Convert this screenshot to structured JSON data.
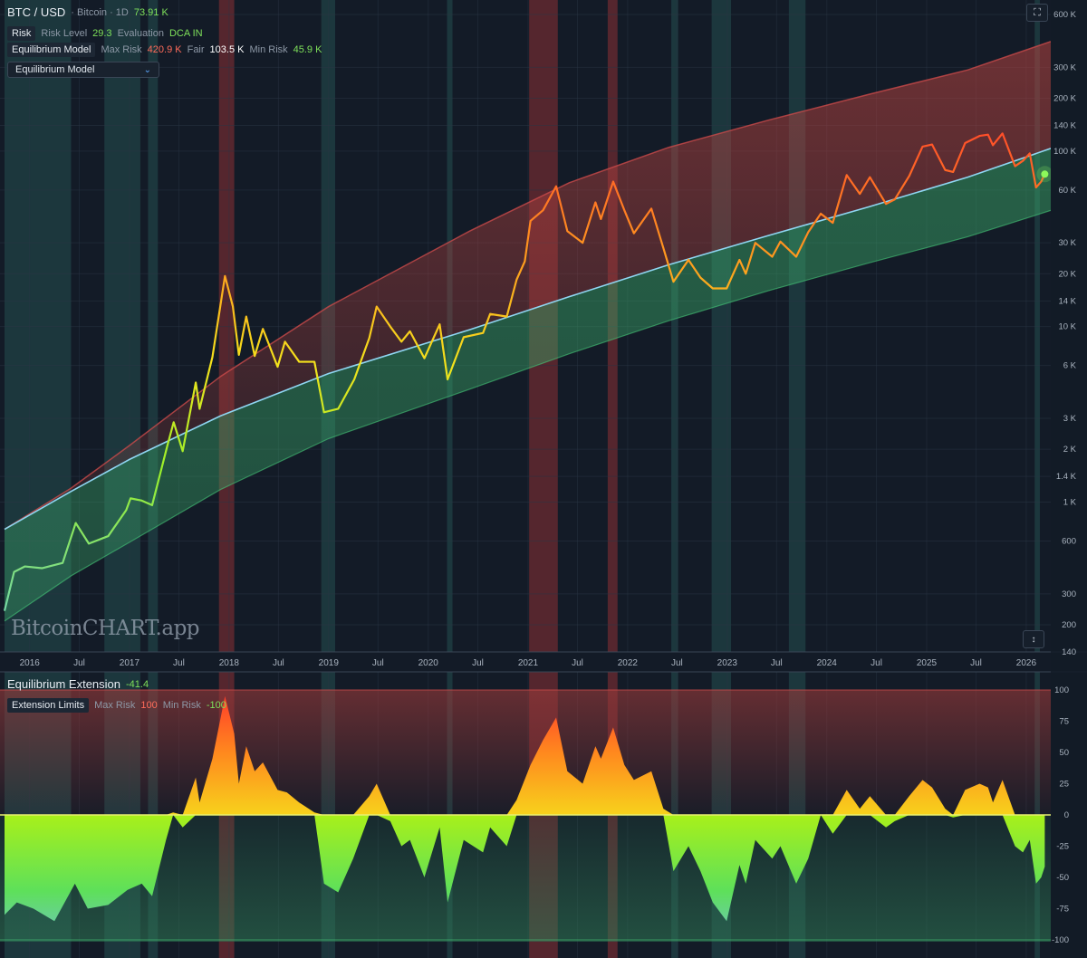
{
  "header": {
    "symbol": "BTC / USD",
    "meta": "· Bitcoin · 1D",
    "price": "73.91 K",
    "risk_tag": "Risk",
    "risk_level_label": "Risk Level",
    "risk_level_value": "29.3",
    "evaluation_label": "Evaluation",
    "evaluation_value": "DCA IN",
    "model_tag": "Equilibrium Model",
    "max_risk_label": "Max Risk",
    "max_risk_value": "420.9 K",
    "fair_label": "Fair",
    "fair_value": "103.5 K",
    "min_risk_label": "Min Risk",
    "min_risk_value": "45.9 K"
  },
  "dropdown": {
    "selected": "Equilibrium Model",
    "icon": "chevron-down-icon"
  },
  "toolbar": {
    "fullscreen_icon": "fullscreen-icon",
    "collapse_icon": "collapse-icon"
  },
  "watermark": {
    "brand_a": "Bitcoin",
    "brand_b": "CHART",
    "brand_c": ".app"
  },
  "subpanel": {
    "title": "Equilibrium Extension",
    "value": "-41.4",
    "limits_tag": "Extension Limits",
    "max_label": "Max Risk",
    "max_value": "100",
    "min_label": "Min Risk",
    "min_value": "-100"
  },
  "colors": {
    "background": "#131b27",
    "fair_line": "#8fd6f2",
    "upper_band": "#c94a4a",
    "lower_band": "#3fae6a",
    "high_risk_zone": "#c23b3b",
    "low_risk_zone": "#2f6e66"
  },
  "chart_data": [
    {
      "type": "line",
      "scale": "log",
      "x_ticks": [
        "2016",
        "Jul",
        "2017",
        "Jul",
        "2018",
        "Jul",
        "2019",
        "Jul",
        "2020",
        "Jul",
        "2021",
        "Jul",
        "2022",
        "Jul",
        "2023",
        "Jul",
        "2024",
        "Jul",
        "2025",
        "Jul",
        "2026"
      ],
      "y_ticks": [
        "600 K",
        "300 K",
        "200 K",
        "140 K",
        "100 K",
        "60 K",
        "30 K",
        "20 K",
        "14 K",
        "10 K",
        "6 K",
        "3 K",
        "2 K",
        "1.4 K",
        "1 K",
        "600",
        "300",
        "200",
        "140"
      ],
      "ylim": [
        140,
        600000
      ],
      "xlim": [
        "2015-10-01",
        "2026-04-01"
      ],
      "bands": {
        "max_risk": [
          [
            "2015-10-01",
            700
          ],
          [
            "2016-06-01",
            1200
          ],
          [
            "2017-01-01",
            2100
          ],
          [
            "2017-12-01",
            5200
          ],
          [
            "2019-01-01",
            13000
          ],
          [
            "2020-06-01",
            35000
          ],
          [
            "2021-06-01",
            66000
          ],
          [
            "2022-06-01",
            105000
          ],
          [
            "2023-06-01",
            150000
          ],
          [
            "2024-06-01",
            210000
          ],
          [
            "2025-06-01",
            290000
          ],
          [
            "2026-04-01",
            420900
          ]
        ],
        "fair": [
          [
            "2015-10-01",
            700
          ],
          [
            "2016-06-01",
            1150
          ],
          [
            "2017-01-01",
            1750
          ],
          [
            "2017-12-01",
            3100
          ],
          [
            "2019-01-01",
            5400
          ],
          [
            "2020-06-01",
            9600
          ],
          [
            "2021-06-01",
            14800
          ],
          [
            "2022-06-01",
            22500
          ],
          [
            "2023-06-01",
            33000
          ],
          [
            "2024-06-01",
            48000
          ],
          [
            "2025-06-01",
            71000
          ],
          [
            "2026-04-01",
            103500
          ]
        ],
        "min_risk": [
          [
            "2015-10-01",
            210
          ],
          [
            "2016-06-01",
            380
          ],
          [
            "2017-01-01",
            590
          ],
          [
            "2017-12-01",
            1180
          ],
          [
            "2019-01-01",
            2300
          ],
          [
            "2020-06-01",
            4400
          ],
          [
            "2021-06-01",
            7000
          ],
          [
            "2022-06-01",
            10800
          ],
          [
            "2023-06-01",
            16000
          ],
          [
            "2024-06-01",
            23000
          ],
          [
            "2025-06-01",
            32500
          ],
          [
            "2026-04-01",
            45900
          ]
        ]
      },
      "price": [
        [
          "2015-10-01",
          240
        ],
        [
          "2015-11-05",
          400
        ],
        [
          "2015-12-15",
          430
        ],
        [
          "2016-02-15",
          420
        ],
        [
          "2016-05-01",
          450
        ],
        [
          "2016-06-18",
          760
        ],
        [
          "2016-08-05",
          580
        ],
        [
          "2016-10-15",
          640
        ],
        [
          "2016-12-20",
          900
        ],
        [
          "2017-01-05",
          1050
        ],
        [
          "2017-02-15",
          1020
        ],
        [
          "2017-03-25",
          960
        ],
        [
          "2017-05-20",
          2100
        ],
        [
          "2017-06-12",
          2850
        ],
        [
          "2017-07-15",
          1950
        ],
        [
          "2017-09-01",
          4800
        ],
        [
          "2017-09-15",
          3400
        ],
        [
          "2017-11-01",
          6700
        ],
        [
          "2017-12-17",
          19400
        ],
        [
          "2018-01-15",
          13000
        ],
        [
          "2018-02-06",
          6900
        ],
        [
          "2018-03-05",
          11400
        ],
        [
          "2018-04-05",
          6800
        ],
        [
          "2018-05-05",
          9700
        ],
        [
          "2018-06-28",
          5900
        ],
        [
          "2018-07-25",
          8200
        ],
        [
          "2018-09-15",
          6300
        ],
        [
          "2018-11-10",
          6300
        ],
        [
          "2018-12-15",
          3250
        ],
        [
          "2019-02-05",
          3400
        ],
        [
          "2019-04-05",
          5000
        ],
        [
          "2019-05-30",
          8600
        ],
        [
          "2019-06-26",
          13000
        ],
        [
          "2019-08-15",
          10000
        ],
        [
          "2019-09-25",
          8200
        ],
        [
          "2019-10-26",
          9400
        ],
        [
          "2019-12-18",
          6600
        ],
        [
          "2020-02-12",
          10300
        ],
        [
          "2020-03-12",
          5000
        ],
        [
          "2020-05-10",
          8700
        ],
        [
          "2020-07-20",
          9200
        ],
        [
          "2020-08-15",
          11800
        ],
        [
          "2020-10-15",
          11400
        ],
        [
          "2020-11-20",
          18500
        ],
        [
          "2020-12-20",
          23500
        ],
        [
          "2021-01-10",
          40000
        ],
        [
          "2021-02-25",
          46000
        ],
        [
          "2021-04-14",
          63000
        ],
        [
          "2021-05-25",
          35000
        ],
        [
          "2021-07-20",
          30000
        ],
        [
          "2021-09-05",
          51000
        ],
        [
          "2021-09-25",
          41000
        ],
        [
          "2021-11-09",
          67000
        ],
        [
          "2021-12-20",
          46000
        ],
        [
          "2022-01-24",
          34000
        ],
        [
          "2022-03-29",
          47000
        ],
        [
          "2022-05-12",
          28000
        ],
        [
          "2022-06-18",
          18000
        ],
        [
          "2022-08-12",
          24000
        ],
        [
          "2022-09-25",
          19000
        ],
        [
          "2022-11-09",
          16500
        ],
        [
          "2022-12-30",
          16500
        ],
        [
          "2023-02-15",
          24000
        ],
        [
          "2023-03-10",
          20000
        ],
        [
          "2023-04-14",
          30000
        ],
        [
          "2023-06-15",
          25000
        ],
        [
          "2023-07-15",
          30500
        ],
        [
          "2023-09-11",
          25000
        ],
        [
          "2023-10-25",
          34500
        ],
        [
          "2023-12-10",
          44000
        ],
        [
          "2024-01-23",
          39000
        ],
        [
          "2024-03-14",
          73000
        ],
        [
          "2024-05-01",
          57000
        ],
        [
          "2024-06-07",
          71000
        ],
        [
          "2024-08-05",
          50000
        ],
        [
          "2024-09-06",
          53000
        ],
        [
          "2024-10-29",
          72000
        ],
        [
          "2024-12-17",
          106000
        ],
        [
          "2025-01-21",
          109000
        ],
        [
          "2025-03-10",
          78000
        ],
        [
          "2025-04-08",
          76000
        ],
        [
          "2025-05-22",
          111000
        ],
        [
          "2025-07-14",
          122000
        ],
        [
          "2025-08-14",
          124000
        ],
        [
          "2025-09-01",
          108000
        ],
        [
          "2025-10-06",
          126000
        ],
        [
          "2025-11-21",
          82000
        ],
        [
          "2025-12-20",
          88000
        ],
        [
          "2026-01-14",
          97000
        ],
        [
          "2026-02-06",
          62000
        ],
        [
          "2026-02-25",
          67000
        ],
        [
          "2026-03-10",
          73910
        ]
      ],
      "high_risk_zones": [
        [
          "2017-11-25",
          "2018-01-20"
        ],
        [
          "2021-01-05",
          "2021-04-20"
        ],
        [
          "2021-10-20",
          "2021-11-25"
        ]
      ],
      "low_risk_zones": [
        [
          "2015-10-01",
          "2016-06-01"
        ],
        [
          "2016-10-01",
          "2017-02-10"
        ],
        [
          "2017-03-10",
          "2017-04-15"
        ],
        [
          "2018-12-05",
          "2019-01-25"
        ],
        [
          "2020-03-10",
          "2020-03-30"
        ],
        [
          "2022-06-10",
          "2022-07-05"
        ],
        [
          "2022-11-05",
          "2023-01-15"
        ],
        [
          "2023-08-15",
          "2023-10-15"
        ],
        [
          "2026-02-01",
          "2026-02-20"
        ]
      ]
    },
    {
      "type": "area",
      "title": "Equilibrium Extension",
      "y_ticks": [
        "100",
        "75",
        "50",
        "25",
        "0",
        "-25",
        "-50",
        "-75",
        "-100"
      ],
      "ylim": [
        -100,
        100
      ],
      "x": [
        "2015-10-01",
        "2015-11-15",
        "2016-01-15",
        "2016-04-01",
        "2016-06-15",
        "2016-08-01",
        "2016-10-15",
        "2016-12-25",
        "2017-02-15",
        "2017-03-25",
        "2017-05-15",
        "2017-06-10",
        "2017-07-15",
        "2017-09-01",
        "2017-09-15",
        "2017-11-01",
        "2017-12-17",
        "2018-01-20",
        "2018-02-06",
        "2018-03-05",
        "2018-04-05",
        "2018-05-05",
        "2018-06-28",
        "2018-08-01",
        "2018-09-15",
        "2018-11-10",
        "2018-12-15",
        "2019-02-05",
        "2019-04-01",
        "2019-05-30",
        "2019-06-26",
        "2019-08-15",
        "2019-09-25",
        "2019-10-26",
        "2019-12-18",
        "2020-02-12",
        "2020-03-12",
        "2020-05-10",
        "2020-07-20",
        "2020-08-15",
        "2020-10-15",
        "2020-11-20",
        "2021-01-10",
        "2021-02-25",
        "2021-04-14",
        "2021-05-25",
        "2021-07-20",
        "2021-09-05",
        "2021-09-25",
        "2021-11-09",
        "2021-12-20",
        "2022-01-24",
        "2022-03-29",
        "2022-05-12",
        "2022-06-18",
        "2022-08-12",
        "2022-09-25",
        "2022-11-09",
        "2022-12-30",
        "2023-02-15",
        "2023-03-10",
        "2023-04-14",
        "2023-06-15",
        "2023-07-15",
        "2023-09-11",
        "2023-10-25",
        "2023-12-10",
        "2024-01-23",
        "2024-03-14",
        "2024-05-01",
        "2024-06-07",
        "2024-08-05",
        "2024-09-06",
        "2024-10-29",
        "2024-12-17",
        "2025-01-21",
        "2025-03-10",
        "2025-04-08",
        "2025-05-22",
        "2025-07-14",
        "2025-08-14",
        "2025-09-01",
        "2025-10-06",
        "2025-11-21",
        "2025-12-20",
        "2026-01-14",
        "2026-02-06",
        "2026-02-25",
        "2026-03-10"
      ],
      "values": [
        -80,
        -70,
        -75,
        -85,
        -55,
        -75,
        -72,
        -60,
        -55,
        -65,
        -20,
        2,
        -10,
        30,
        10,
        45,
        95,
        65,
        25,
        55,
        35,
        42,
        20,
        18,
        10,
        2,
        -55,
        -62,
        -35,
        15,
        25,
        -5,
        -25,
        -20,
        -50,
        -10,
        -70,
        -20,
        -30,
        -10,
        -25,
        12,
        40,
        60,
        78,
        35,
        25,
        55,
        45,
        70,
        40,
        28,
        35,
        5,
        -45,
        -25,
        -45,
        -70,
        -85,
        -40,
        -55,
        -20,
        -35,
        -25,
        -55,
        -35,
        0,
        -15,
        20,
        5,
        15,
        -10,
        -5,
        15,
        28,
        22,
        5,
        -2,
        20,
        25,
        22,
        10,
        28,
        -25,
        -30,
        -20,
        -55,
        -50,
        -41.4
      ]
    }
  ]
}
